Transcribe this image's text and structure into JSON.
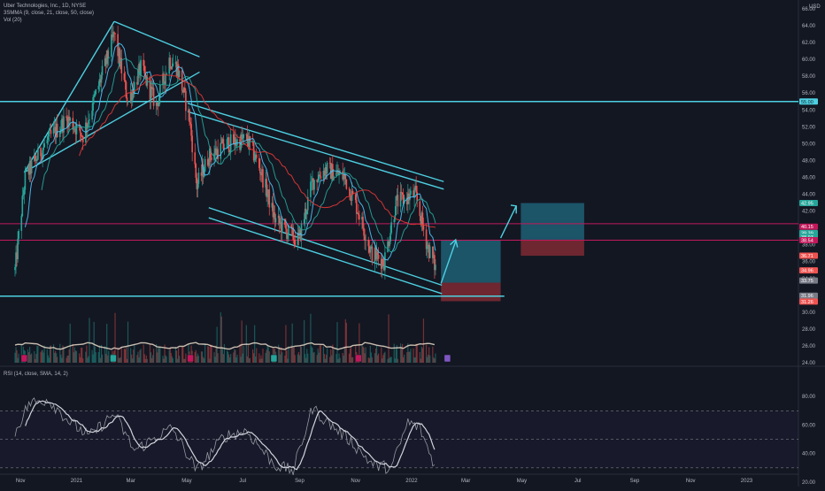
{
  "legend": {
    "title": "Uber Technologies, Inc., 1D, NYSE",
    "indicator1": "3SMMA (9, close, 21, close, 50, close)",
    "indicator2": "Vol (20)",
    "rsi": "RSI (14, close, SMA, 14, 2)"
  },
  "colors": {
    "background": "#131722",
    "up": "#26a69a",
    "down": "#ef5350",
    "trendline": "#4dd0e1",
    "level": "#c2185b",
    "ma_fast": "#4fc3f7",
    "ma_mid": "#26a69a",
    "ma_slow": "#e53935",
    "rsi": "#9598a1",
    "rsi_ma": "#d1d4dc",
    "target_box": "#1e5f74",
    "stop_box": "#7f2a33"
  },
  "chart_data": [
    {
      "type": "candlestick",
      "symbol": "Uber Technologies, Inc., 1D, NYSE",
      "currency_label": "USD",
      "ylim": [
        24,
        66
      ],
      "y_ticks": [
        24,
        26,
        28,
        30,
        32,
        34,
        36,
        38,
        40,
        42,
        44,
        46,
        48,
        50,
        52,
        54,
        56,
        58,
        60,
        62,
        64,
        66
      ],
      "x_ticks": [
        "Nov",
        "2021",
        "Mar",
        "May",
        "Jul",
        "Sep",
        "Nov",
        "2022",
        "Mar",
        "May",
        "Jul",
        "Sep",
        "Nov",
        "2023",
        "Mar"
      ],
      "price_path": [
        [
          "2020-10-26",
          35
        ],
        [
          "2020-11-06",
          46
        ],
        [
          "2020-12-01",
          50.5
        ],
        [
          "2020-12-22",
          53
        ],
        [
          "2021-01-08",
          51
        ],
        [
          "2021-02-03",
          60
        ],
        [
          "2021-02-11",
          63
        ],
        [
          "2021-02-26",
          55
        ],
        [
          "2021-03-12",
          59
        ],
        [
          "2021-03-29",
          54.5
        ],
        [
          "2021-04-12",
          60
        ],
        [
          "2021-04-21",
          59
        ],
        [
          "2021-05-04",
          53
        ],
        [
          "2021-05-12",
          45
        ],
        [
          "2021-05-25",
          48.5
        ],
        [
          "2021-06-15",
          50
        ],
        [
          "2021-07-06",
          50.5
        ],
        [
          "2021-07-20",
          47
        ],
        [
          "2021-08-05",
          41
        ],
        [
          "2021-08-19",
          39.5
        ],
        [
          "2021-08-31",
          38.5
        ],
        [
          "2021-09-15",
          45.5
        ],
        [
          "2021-09-29",
          47
        ],
        [
          "2021-10-20",
          46
        ],
        [
          "2021-11-04",
          42
        ],
        [
          "2021-11-18",
          37
        ],
        [
          "2021-12-02",
          36
        ],
        [
          "2021-12-15",
          43
        ],
        [
          "2022-01-05",
          44
        ],
        [
          "2022-01-18",
          38
        ],
        [
          "2022-01-28",
          34.96
        ]
      ],
      "moving_averages": [
        {
          "name": "SMA 9",
          "color": "#4fc3f7"
        },
        {
          "name": "SMA 21",
          "color": "#26a69a"
        },
        {
          "name": "SMA 50",
          "color": "#e53935"
        }
      ],
      "horizontal_levels": [
        {
          "price": 55.0,
          "label": "55.00",
          "style": "cyan"
        },
        {
          "price": 40.5,
          "style": "magenta"
        },
        {
          "price": 38.54,
          "style": "magenta"
        },
        {
          "price": 31.9,
          "style": "cyan"
        }
      ],
      "price_labels": [
        {
          "value": "42.95",
          "bg": "#26a69a"
        },
        {
          "value": "40.15",
          "bg": "#c2185b"
        },
        {
          "value": "39.39",
          "bg": "#26a69a"
        },
        {
          "value": "38.93",
          "bg": "#26a69a"
        },
        {
          "value": "38.54",
          "bg": "#c2185b"
        },
        {
          "value": "36.71",
          "bg": "#ef5350"
        },
        {
          "value": "34.96",
          "bg": "#ef5350"
        },
        {
          "value": "33.75",
          "bg": "#787b86"
        },
        {
          "value": "31.96",
          "bg": "#787b86"
        },
        {
          "value": "31.26",
          "bg": "#ef5350"
        }
      ],
      "positions": [
        {
          "from": "2022-02-02",
          "to": "2022-04-08",
          "entry": 33.5,
          "target": 38.6,
          "stop": 31.3
        },
        {
          "from": "2022-04-30",
          "to": "2022-07-08",
          "entry": 38.6,
          "target": 42.95,
          "stop": 36.7
        }
      ],
      "earnings_markers": [
        "2020-11-05",
        "2021-02-10",
        "2021-05-05",
        "2021-08-04",
        "2021-11-04",
        "2022-02-09"
      ],
      "volume": {
        "label": "Vol (20)"
      }
    },
    {
      "type": "line",
      "name": "RSI (14, close, SMA, 14, 2)",
      "ylim": [
        20,
        90
      ],
      "y_ticks": [
        20,
        40,
        60,
        80
      ],
      "bands": [
        30,
        50,
        70
      ],
      "rsi_path": [
        [
          "2020-10-26",
          55
        ],
        [
          "2020-11-10",
          75
        ],
        [
          "2020-12-01",
          78
        ],
        [
          "2020-12-25",
          62
        ],
        [
          "2021-01-15",
          52
        ],
        [
          "2021-02-11",
          68
        ],
        [
          "2021-03-05",
          42
        ],
        [
          "2021-03-25",
          50
        ],
        [
          "2021-04-15",
          58
        ],
        [
          "2021-05-12",
          28
        ],
        [
          "2021-06-10",
          52
        ],
        [
          "2021-07-05",
          56
        ],
        [
          "2021-08-05",
          32
        ],
        [
          "2021-08-25",
          28
        ],
        [
          "2021-09-15",
          72
        ],
        [
          "2021-10-01",
          62
        ],
        [
          "2021-10-25",
          50
        ],
        [
          "2021-11-20",
          32
        ],
        [
          "2021-12-10",
          30
        ],
        [
          "2021-12-28",
          62
        ],
        [
          "2022-01-10",
          58
        ],
        [
          "2022-01-28",
          28
        ]
      ]
    }
  ]
}
